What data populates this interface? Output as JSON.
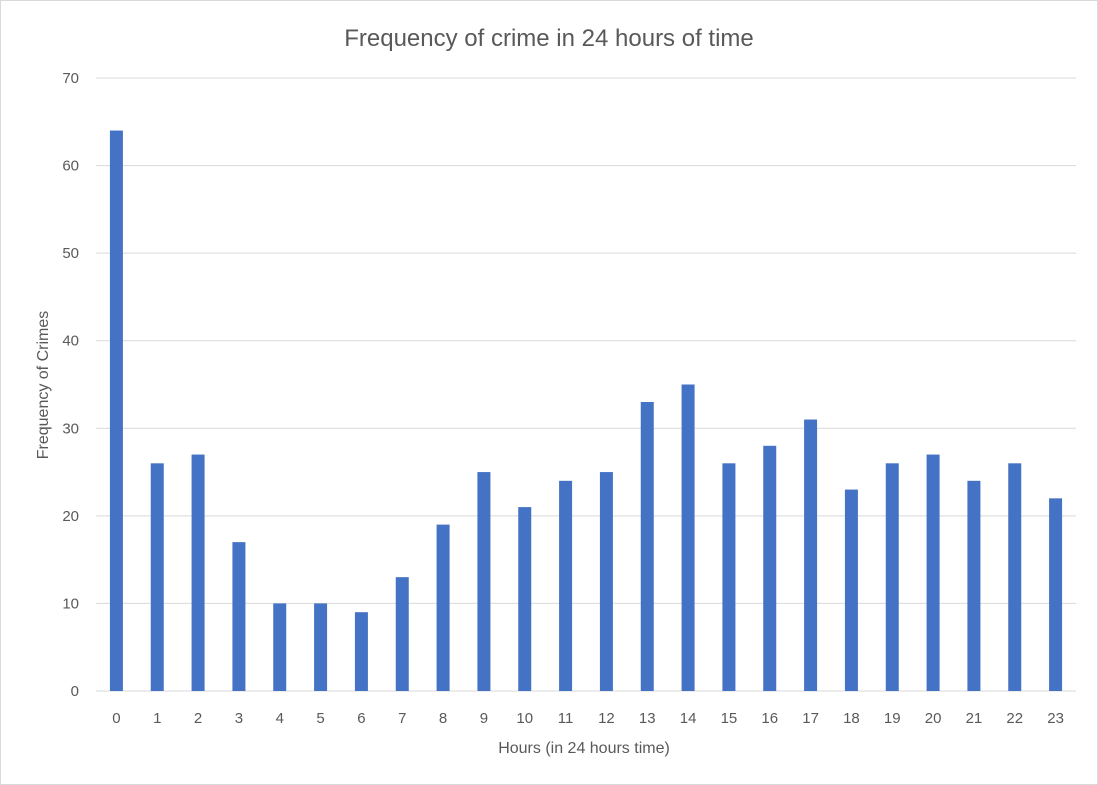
{
  "chart_data": {
    "type": "bar",
    "title": "Frequency of crime in 24 hours of time",
    "xlabel": "Hours (in 24 hours time)",
    "ylabel": "Frequency of Crimes",
    "categories": [
      "0",
      "1",
      "2",
      "3",
      "4",
      "5",
      "6",
      "7",
      "8",
      "9",
      "10",
      "11",
      "12",
      "13",
      "14",
      "15",
      "16",
      "17",
      "18",
      "19",
      "20",
      "21",
      "22",
      "23"
    ],
    "values": [
      64,
      26,
      27,
      17,
      10,
      10,
      9,
      13,
      19,
      25,
      21,
      24,
      25,
      33,
      35,
      26,
      28,
      31,
      23,
      26,
      27,
      24,
      26,
      22
    ],
    "ylim": [
      0,
      70
    ],
    "yticks": [
      0,
      10,
      20,
      30,
      40,
      50,
      60,
      70
    ],
    "ytick_labels": [
      "0",
      "10",
      "20",
      "30",
      "40",
      "50",
      "60",
      "70"
    ],
    "grid": true,
    "legend": "none",
    "bar_color": "#4472c4",
    "grid_color": "#d9d9d9",
    "text_color": "#595959"
  }
}
